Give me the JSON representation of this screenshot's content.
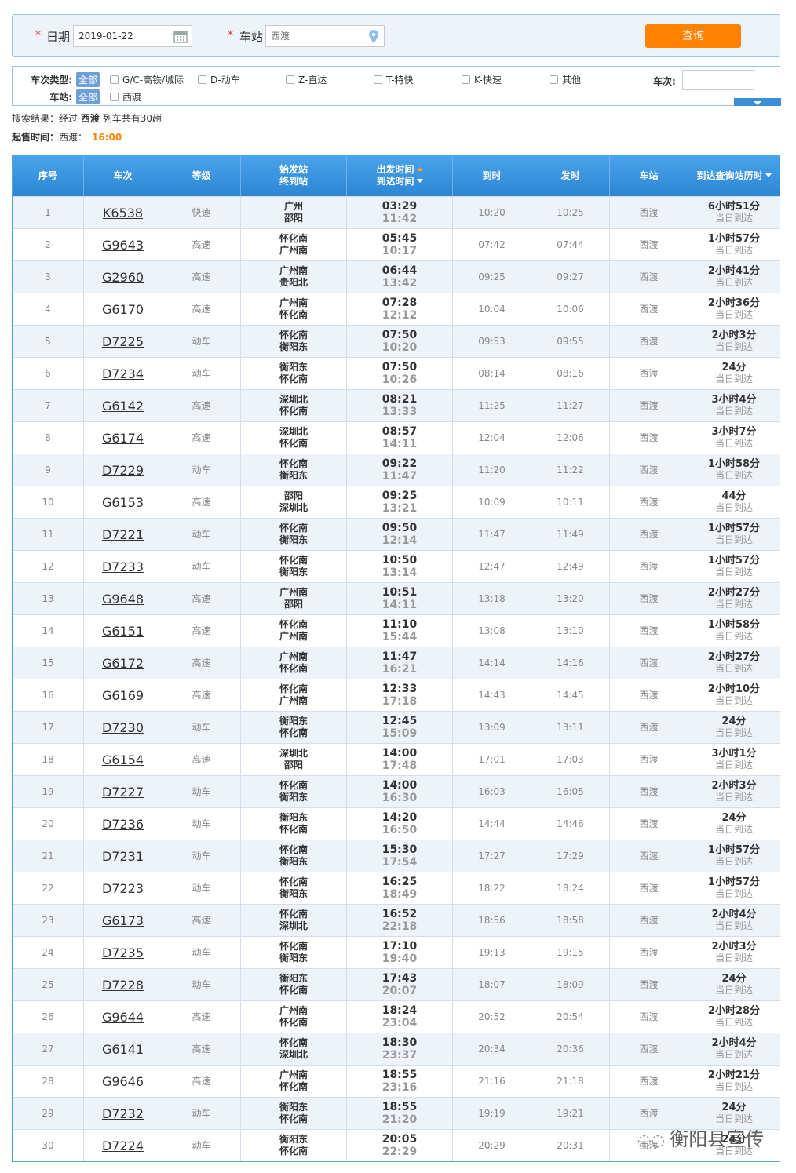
{
  "search": {
    "required": "*",
    "date_label": "日期",
    "date_value": "2019-01-22",
    "station_label": "车站",
    "station_value": "西渡",
    "button": "查询"
  },
  "filters": {
    "type_label": "车次类型:",
    "type_all": "全部",
    "types": [
      "G/C-高铁/城际",
      "D-动车",
      "Z-直达",
      "T-特快",
      "K-快速",
      "其他"
    ],
    "station_label": "车站:",
    "station_all": "全部",
    "stations": [
      "西渡"
    ],
    "train_label": "车次:"
  },
  "summary": {
    "result_prefix": "搜索结果：经过",
    "result_station": "西渡",
    "result_suffix": "列车共有30趟",
    "sale_label": "起售时间：",
    "sale_station": "西渡：",
    "sale_time": "16:00"
  },
  "table": {
    "headers": [
      "序号",
      "车次",
      "等级",
      [
        "始发站",
        "终到站"
      ],
      [
        "出发时间",
        "到达时间"
      ],
      "到时",
      "发时",
      "车站",
      "到达查询站历时"
    ],
    "rows": [
      [
        "1",
        "K6538",
        "快速",
        "广州",
        "邵阳",
        "03:29",
        "11:42",
        "10:20",
        "10:25",
        "西渡",
        "6小时51分",
        "当日到达"
      ],
      [
        "2",
        "G9643",
        "高速",
        "怀化南",
        "广州南",
        "05:45",
        "10:17",
        "07:42",
        "07:44",
        "西渡",
        "1小时57分",
        "当日到达"
      ],
      [
        "3",
        "G2960",
        "高速",
        "广州南",
        "贵阳北",
        "06:44",
        "13:42",
        "09:25",
        "09:27",
        "西渡",
        "2小时41分",
        "当日到达"
      ],
      [
        "4",
        "G6170",
        "高速",
        "广州南",
        "怀化南",
        "07:28",
        "12:12",
        "10:04",
        "10:06",
        "西渡",
        "2小时36分",
        "当日到达"
      ],
      [
        "5",
        "D7225",
        "动车",
        "怀化南",
        "衡阳东",
        "07:50",
        "10:20",
        "09:53",
        "09:55",
        "西渡",
        "2小时3分",
        "当日到达"
      ],
      [
        "6",
        "D7234",
        "动车",
        "衡阳东",
        "怀化南",
        "07:50",
        "10:26",
        "08:14",
        "08:16",
        "西渡",
        "24分",
        "当日到达"
      ],
      [
        "7",
        "G6142",
        "高速",
        "深圳北",
        "怀化南",
        "08:21",
        "13:33",
        "11:25",
        "11:27",
        "西渡",
        "3小时4分",
        "当日到达"
      ],
      [
        "8",
        "G6174",
        "高速",
        "深圳北",
        "怀化南",
        "08:57",
        "14:11",
        "12:04",
        "12:06",
        "西渡",
        "3小时7分",
        "当日到达"
      ],
      [
        "9",
        "D7229",
        "动车",
        "怀化南",
        "衡阳东",
        "09:22",
        "11:47",
        "11:20",
        "11:22",
        "西渡",
        "1小时58分",
        "当日到达"
      ],
      [
        "10",
        "G6153",
        "高速",
        "邵阳",
        "深圳北",
        "09:25",
        "13:21",
        "10:09",
        "10:11",
        "西渡",
        "44分",
        "当日到达"
      ],
      [
        "11",
        "D7221",
        "动车",
        "怀化南",
        "衡阳东",
        "09:50",
        "12:14",
        "11:47",
        "11:49",
        "西渡",
        "1小时57分",
        "当日到达"
      ],
      [
        "12",
        "D7233",
        "动车",
        "怀化南",
        "衡阳东",
        "10:50",
        "13:14",
        "12:47",
        "12:49",
        "西渡",
        "1小时57分",
        "当日到达"
      ],
      [
        "13",
        "G9648",
        "高速",
        "广州南",
        "邵阳",
        "10:51",
        "14:11",
        "13:18",
        "13:20",
        "西渡",
        "2小时27分",
        "当日到达"
      ],
      [
        "14",
        "G6151",
        "高速",
        "怀化南",
        "广州南",
        "11:10",
        "15:44",
        "13:08",
        "13:10",
        "西渡",
        "1小时58分",
        "当日到达"
      ],
      [
        "15",
        "G6172",
        "高速",
        "广州南",
        "怀化南",
        "11:47",
        "16:21",
        "14:14",
        "14:16",
        "西渡",
        "2小时27分",
        "当日到达"
      ],
      [
        "16",
        "G6169",
        "高速",
        "怀化南",
        "广州南",
        "12:33",
        "17:18",
        "14:43",
        "14:45",
        "西渡",
        "2小时10分",
        "当日到达"
      ],
      [
        "17",
        "D7230",
        "动车",
        "衡阳东",
        "怀化南",
        "12:45",
        "15:09",
        "13:09",
        "13:11",
        "西渡",
        "24分",
        "当日到达"
      ],
      [
        "18",
        "G6154",
        "高速",
        "深圳北",
        "邵阳",
        "14:00",
        "17:48",
        "17:01",
        "17:03",
        "西渡",
        "3小时1分",
        "当日到达"
      ],
      [
        "19",
        "D7227",
        "动车",
        "怀化南",
        "衡阳东",
        "14:00",
        "16:30",
        "16:03",
        "16:05",
        "西渡",
        "2小时3分",
        "当日到达"
      ],
      [
        "20",
        "D7236",
        "动车",
        "衡阳东",
        "怀化南",
        "14:20",
        "16:50",
        "14:44",
        "14:46",
        "西渡",
        "24分",
        "当日到达"
      ],
      [
        "21",
        "D7231",
        "动车",
        "怀化南",
        "衡阳东",
        "15:30",
        "17:54",
        "17:27",
        "17:29",
        "西渡",
        "1小时57分",
        "当日到达"
      ],
      [
        "22",
        "D7223",
        "动车",
        "怀化南",
        "衡阳东",
        "16:25",
        "18:49",
        "18:22",
        "18:24",
        "西渡",
        "1小时57分",
        "当日到达"
      ],
      [
        "23",
        "G6173",
        "高速",
        "怀化南",
        "深圳北",
        "16:52",
        "22:18",
        "18:56",
        "18:58",
        "西渡",
        "2小时4分",
        "当日到达"
      ],
      [
        "24",
        "D7235",
        "动车",
        "怀化南",
        "衡阳东",
        "17:10",
        "19:40",
        "19:13",
        "19:15",
        "西渡",
        "2小时3分",
        "当日到达"
      ],
      [
        "25",
        "D7228",
        "动车",
        "衡阳东",
        "怀化南",
        "17:43",
        "20:07",
        "18:07",
        "18:09",
        "西渡",
        "24分",
        "当日到达"
      ],
      [
        "26",
        "G9644",
        "高速",
        "广州南",
        "怀化南",
        "18:24",
        "23:04",
        "20:52",
        "20:54",
        "西渡",
        "2小时28分",
        "当日到达"
      ],
      [
        "27",
        "G6141",
        "高速",
        "怀化南",
        "深圳北",
        "18:30",
        "23:37",
        "20:34",
        "20:36",
        "西渡",
        "2小时4分",
        "当日到达"
      ],
      [
        "28",
        "G9646",
        "高速",
        "广州南",
        "怀化南",
        "18:55",
        "23:16",
        "21:16",
        "21:18",
        "西渡",
        "2小时21分",
        "当日到达"
      ],
      [
        "29",
        "D7232",
        "动车",
        "衡阳东",
        "怀化南",
        "18:55",
        "21:20",
        "19:19",
        "19:21",
        "西渡",
        "24分",
        "当日到达"
      ],
      [
        "30",
        "D7224",
        "动车",
        "衡阳东",
        "怀化南",
        "20:05",
        "22:29",
        "20:29",
        "20:31",
        "西渡",
        "24分",
        "当日到达"
      ]
    ]
  },
  "watermark": "衡阳县宣传"
}
